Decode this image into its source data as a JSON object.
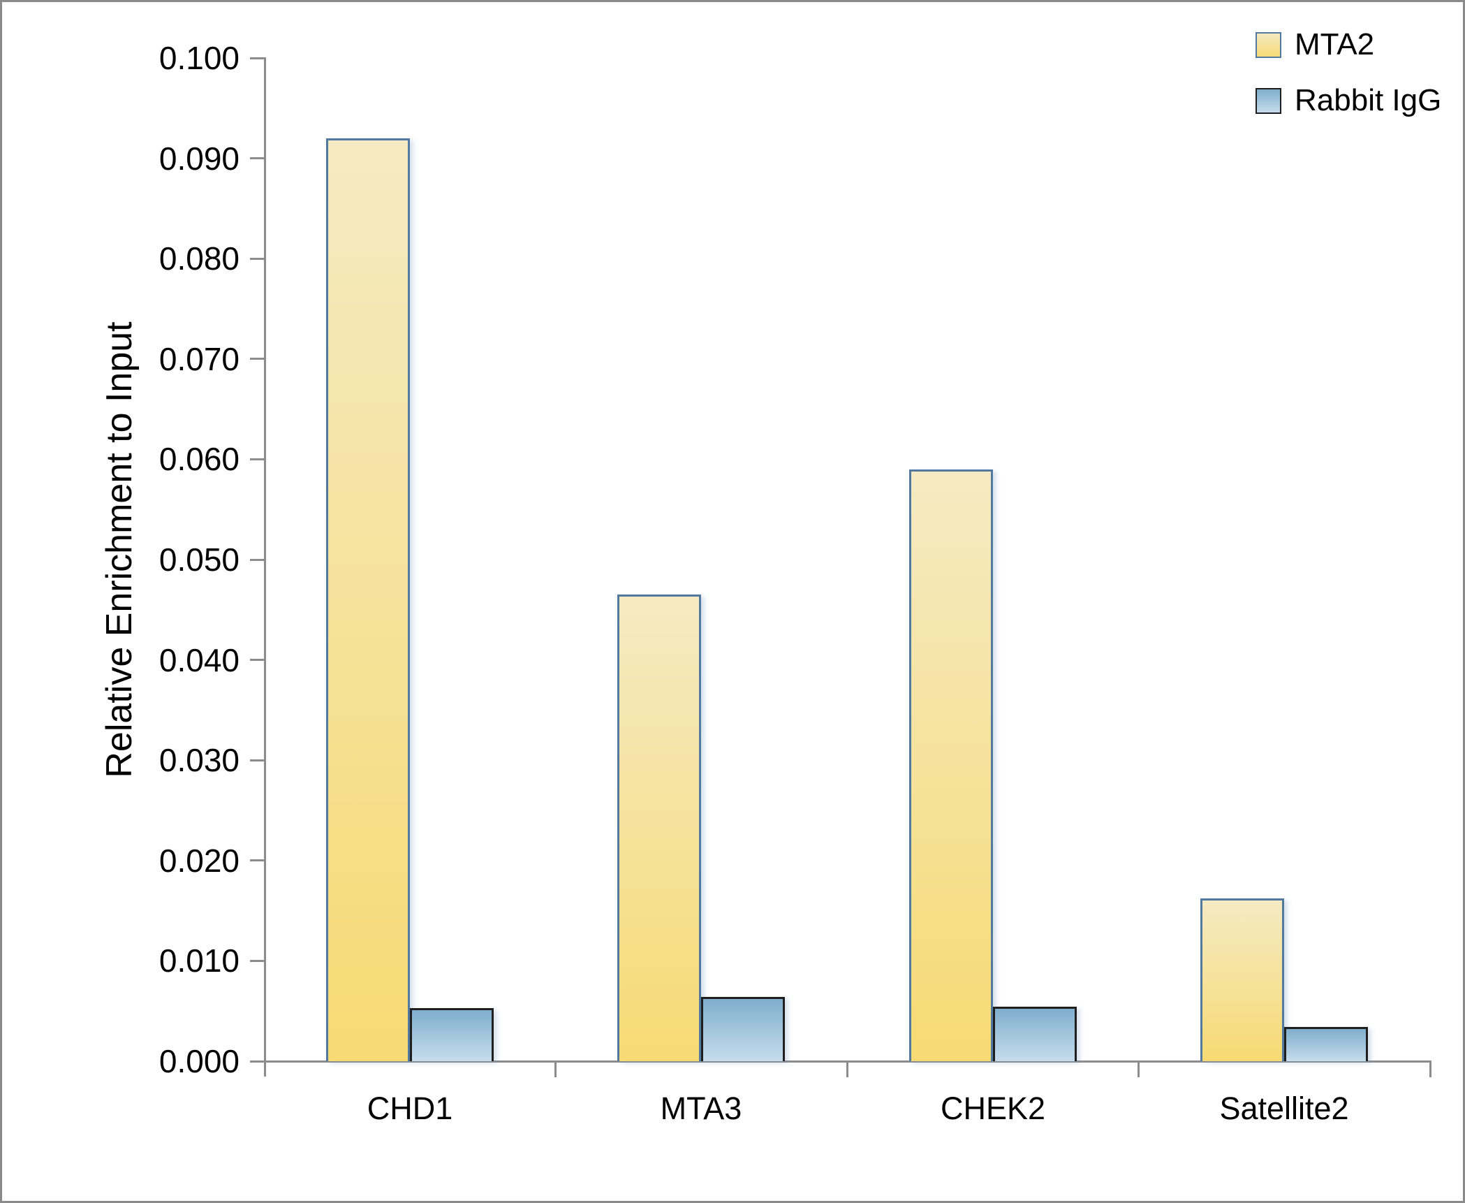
{
  "chart_data": {
    "type": "bar",
    "title": "",
    "ylabel": "Relative Enrichment to Input",
    "xlabel": "",
    "categories": [
      "CHD1",
      "MTA3",
      "CHEK2",
      "Satellite2"
    ],
    "series": [
      {
        "name": "MTA2",
        "values": [
          0.092,
          0.0465,
          0.059,
          0.0162
        ],
        "fill_top": "#F5EAC3",
        "fill_bottom": "#F6DA73",
        "border": "#527AA0"
      },
      {
        "name": "Rabbit IgG",
        "values": [
          0.0053,
          0.0064,
          0.0054,
          0.0034
        ],
        "fill_top": "#7FAECD",
        "fill_bottom": "#C6DDEC",
        "border": "#1F1F1F"
      }
    ],
    "ylim": [
      0,
      0.1
    ],
    "ytick_step": 0.01,
    "ytick_labels": [
      "0.000",
      "0.010",
      "0.020",
      "0.030",
      "0.040",
      "0.050",
      "0.060",
      "0.070",
      "0.080",
      "0.090",
      "0.100"
    ],
    "grid": false,
    "legend_position": "top-right",
    "axis_color": "#8c8c8c",
    "text_color": "#000000"
  }
}
